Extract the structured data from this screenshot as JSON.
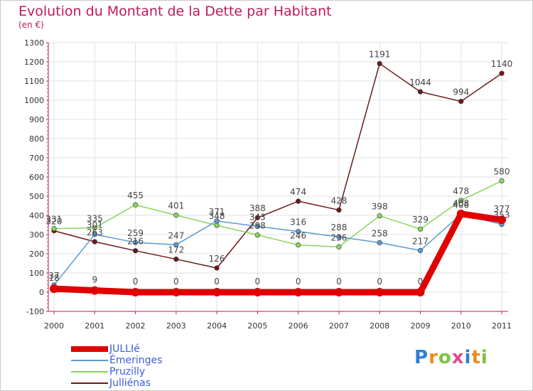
{
  "title": "Evolution du Montant de la Dette par Habitant",
  "subtitle": "(en €)",
  "logo": "Proxiti",
  "chart_data": {
    "type": "line",
    "title": "Evolution du Montant de la Dette par Habitant",
    "subtitle": "(en €)",
    "x": [
      "2000",
      "2001",
      "2002",
      "2003",
      "2004",
      "2005",
      "2006",
      "2007",
      "2008",
      "2009",
      "2010",
      "2011"
    ],
    "y_ticks": [
      "-100",
      "0",
      "100",
      "200",
      "300",
      "400",
      "500",
      "600",
      "700",
      "800",
      "900",
      "1000",
      "1100",
      "1200",
      "1300"
    ],
    "ylim": [
      -100,
      1300
    ],
    "grid": true,
    "legend": "bottom-left",
    "series": [
      {
        "name": "Julliénas",
        "color": "#6b1a1a",
        "values": [
          320,
          263,
          216,
          172,
          126,
          388,
          474,
          428,
          1191,
          1044,
          994,
          1140
        ],
        "labels": [
          "320",
          "263",
          "216",
          "172",
          "126",
          "388",
          "474",
          "428",
          "1191",
          "1044",
          "994",
          "1140"
        ]
      },
      {
        "name": "Pruzilly",
        "color": "#88d65c",
        "values": [
          331,
          335,
          455,
          401,
          348,
          298,
          246,
          236,
          398,
          329,
          478,
          580
        ],
        "labels": [
          "331",
          "335",
          "455",
          "401",
          "348",
          "298",
          "246",
          "236",
          "398",
          "329",
          "478",
          "580"
        ]
      },
      {
        "name": "Émeringes",
        "color": "#5b9bd0",
        "values": [
          37,
          301,
          259,
          247,
          371,
          343,
          316,
          288,
          258,
          217,
          406,
          353
        ],
        "labels": [
          "37",
          "301",
          "259",
          "247",
          "371",
          "343",
          "316",
          "288",
          "258",
          "217",
          "406",
          "353"
        ]
      },
      {
        "name": "JULLIé",
        "color": "#e00000",
        "values": [
          18,
          9,
          0,
          0,
          0,
          0,
          0,
          0,
          0,
          0,
          408,
          377
        ],
        "labels": [
          "18",
          "9",
          "0",
          "0",
          "0",
          "0",
          "0",
          "0",
          "0",
          "0",
          "408",
          "377"
        ]
      }
    ]
  }
}
